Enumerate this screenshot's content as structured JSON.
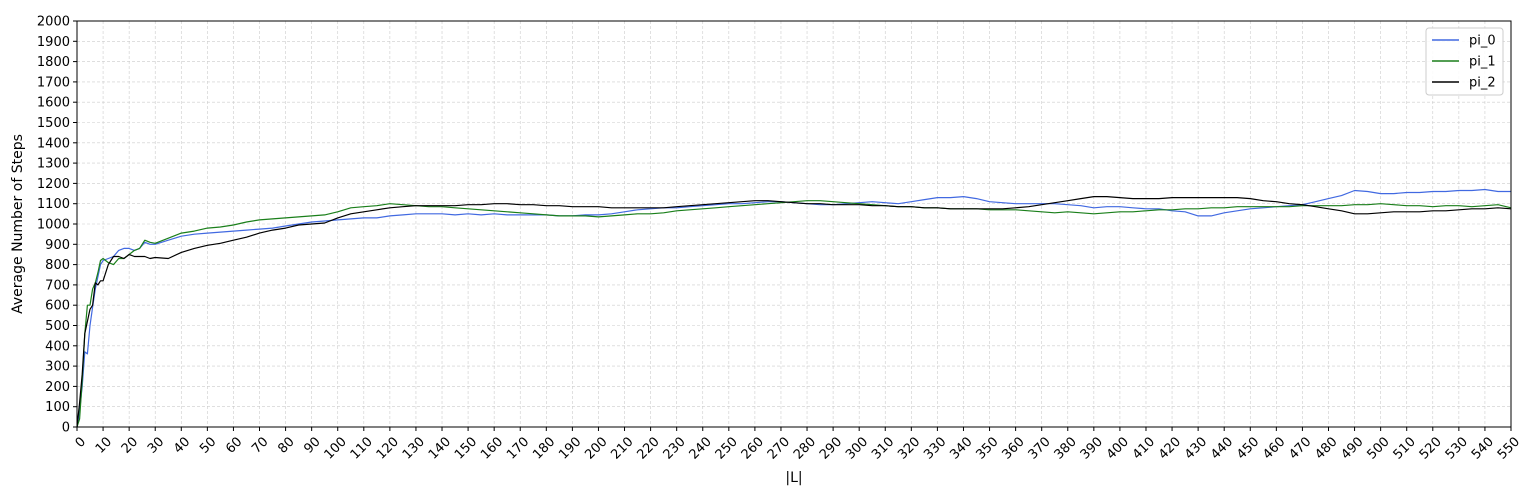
{
  "chart_data": {
    "type": "line",
    "xlabel": "|L|",
    "ylabel": "Average Number of Steps",
    "xlim": [
      0,
      550
    ],
    "ylim": [
      0,
      2000
    ],
    "xticks": [
      0,
      10,
      20,
      30,
      40,
      50,
      60,
      70,
      80,
      90,
      100,
      110,
      120,
      130,
      140,
      150,
      160,
      170,
      180,
      190,
      200,
      210,
      220,
      230,
      240,
      250,
      260,
      270,
      280,
      290,
      300,
      310,
      320,
      330,
      340,
      350,
      360,
      370,
      380,
      390,
      400,
      410,
      420,
      430,
      440,
      450,
      460,
      470,
      480,
      490,
      500,
      510,
      520,
      530,
      540,
      550
    ],
    "yticks": [
      0,
      100,
      200,
      300,
      400,
      500,
      600,
      700,
      800,
      900,
      1000,
      1100,
      1200,
      1300,
      1400,
      1500,
      1600,
      1700,
      1800,
      1900,
      2000
    ],
    "grid": true,
    "legend_position": "top-right",
    "x": [
      0,
      1,
      2,
      3,
      4,
      5,
      6,
      7,
      8,
      9,
      10,
      12,
      14,
      16,
      18,
      20,
      22,
      24,
      26,
      28,
      30,
      35,
      40,
      45,
      50,
      55,
      60,
      65,
      70,
      75,
      80,
      85,
      90,
      95,
      100,
      105,
      110,
      115,
      120,
      125,
      130,
      135,
      140,
      145,
      150,
      155,
      160,
      165,
      170,
      175,
      180,
      185,
      190,
      195,
      200,
      205,
      210,
      215,
      220,
      225,
      230,
      235,
      240,
      245,
      250,
      255,
      260,
      265,
      270,
      275,
      280,
      285,
      290,
      295,
      300,
      305,
      310,
      315,
      320,
      325,
      330,
      335,
      340,
      345,
      350,
      355,
      360,
      365,
      370,
      375,
      380,
      385,
      390,
      395,
      400,
      405,
      410,
      415,
      420,
      425,
      430,
      435,
      440,
      445,
      450,
      455,
      460,
      465,
      470,
      475,
      480,
      485,
      490,
      495,
      500,
      505,
      510,
      515,
      520,
      525,
      530,
      535,
      540,
      545,
      550
    ],
    "series": [
      {
        "name": "pi_0",
        "color": "#4169e1",
        "values": [
          0,
          80,
          200,
          370,
          360,
          500,
          590,
          680,
          740,
          800,
          820,
          830,
          840,
          870,
          880,
          880,
          870,
          880,
          910,
          900,
          900,
          920,
          940,
          950,
          955,
          960,
          965,
          970,
          975,
          980,
          990,
          1000,
          1010,
          1015,
          1020,
          1025,
          1030,
          1030,
          1040,
          1045,
          1050,
          1050,
          1050,
          1045,
          1050,
          1045,
          1050,
          1045,
          1045,
          1045,
          1045,
          1040,
          1040,
          1045,
          1045,
          1050,
          1060,
          1070,
          1075,
          1080,
          1080,
          1085,
          1090,
          1095,
          1100,
          1100,
          1105,
          1110,
          1110,
          1105,
          1100,
          1095,
          1095,
          1100,
          1105,
          1110,
          1105,
          1100,
          1110,
          1120,
          1130,
          1130,
          1135,
          1125,
          1110,
          1105,
          1100,
          1100,
          1100,
          1100,
          1095,
          1090,
          1080,
          1085,
          1085,
          1080,
          1075,
          1075,
          1065,
          1060,
          1040,
          1040,
          1055,
          1065,
          1075,
          1080,
          1085,
          1090,
          1095,
          1110,
          1125,
          1140,
          1165,
          1160,
          1150,
          1150,
          1155,
          1155,
          1160,
          1160,
          1165,
          1165,
          1170,
          1160,
          1160
        ]
      },
      {
        "name": "pi_1",
        "color": "#1a7f1a",
        "values": [
          0,
          40,
          230,
          460,
          600,
          600,
          680,
          710,
          760,
          820,
          830,
          810,
          800,
          830,
          830,
          850,
          870,
          880,
          920,
          910,
          905,
          930,
          955,
          965,
          980,
          985,
          995,
          1010,
          1020,
          1025,
          1030,
          1035,
          1040,
          1045,
          1060,
          1080,
          1085,
          1090,
          1100,
          1095,
          1090,
          1085,
          1085,
          1080,
          1075,
          1070,
          1065,
          1060,
          1055,
          1050,
          1045,
          1040,
          1040,
          1040,
          1035,
          1040,
          1045,
          1050,
          1050,
          1055,
          1065,
          1070,
          1075,
          1080,
          1085,
          1090,
          1095,
          1100,
          1105,
          1110,
          1115,
          1115,
          1110,
          1105,
          1100,
          1095,
          1090,
          1085,
          1085,
          1080,
          1080,
          1075,
          1075,
          1075,
          1070,
          1070,
          1070,
          1065,
          1060,
          1055,
          1060,
          1055,
          1050,
          1055,
          1060,
          1060,
          1065,
          1070,
          1070,
          1075,
          1075,
          1080,
          1080,
          1085,
          1085,
          1085,
          1085,
          1085,
          1090,
          1090,
          1090,
          1090,
          1095,
          1095,
          1100,
          1095,
          1090,
          1090,
          1085,
          1090,
          1090,
          1085,
          1090,
          1095,
          1080
        ]
      },
      {
        "name": "pi_2",
        "color": "#000000",
        "values": [
          0,
          120,
          260,
          460,
          520,
          580,
          600,
          710,
          700,
          720,
          720,
          800,
          840,
          840,
          830,
          850,
          840,
          840,
          840,
          830,
          835,
          830,
          860,
          880,
          895,
          905,
          920,
          935,
          955,
          970,
          980,
          995,
          1000,
          1005,
          1030,
          1050,
          1060,
          1070,
          1080,
          1085,
          1090,
          1090,
          1090,
          1090,
          1095,
          1095,
          1100,
          1100,
          1095,
          1095,
          1090,
          1090,
          1085,
          1085,
          1085,
          1080,
          1080,
          1080,
          1080,
          1080,
          1085,
          1090,
          1095,
          1100,
          1105,
          1110,
          1115,
          1115,
          1110,
          1105,
          1100,
          1100,
          1095,
          1095,
          1095,
          1090,
          1090,
          1085,
          1085,
          1080,
          1080,
          1075,
          1075,
          1075,
          1075,
          1075,
          1080,
          1085,
          1095,
          1105,
          1115,
          1125,
          1135,
          1135,
          1130,
          1125,
          1125,
          1125,
          1130,
          1130,
          1130,
          1130,
          1130,
          1130,
          1125,
          1115,
          1110,
          1100,
          1095,
          1085,
          1075,
          1065,
          1050,
          1050,
          1055,
          1060,
          1060,
          1060,
          1065,
          1065,
          1070,
          1075,
          1075,
          1080,
          1075
        ]
      }
    ]
  }
}
